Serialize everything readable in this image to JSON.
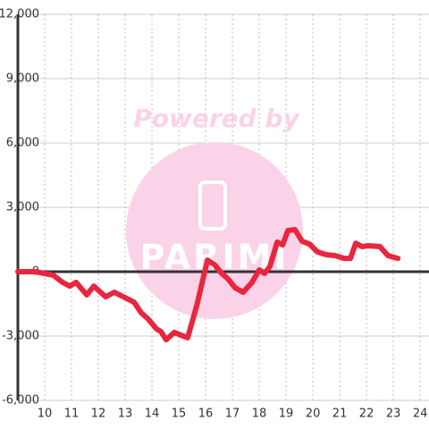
{
  "chart_data": {
    "type": "line",
    "watermark": "Powered by",
    "watermark_logo": "PARIMI",
    "x": [
      9.0,
      9.67,
      10.33,
      10.67,
      10.93,
      11.17,
      11.57,
      11.83,
      12.27,
      12.6,
      13.0,
      13.33,
      13.6,
      13.83,
      14.17,
      14.33,
      14.53,
      14.83,
      15.33,
      15.67,
      16.07,
      16.33,
      16.6,
      16.83,
      17.1,
      17.4,
      17.73,
      18.0,
      18.2,
      18.4,
      18.67,
      18.87,
      19.07,
      19.33,
      19.6,
      19.87,
      20.17,
      20.5,
      20.83,
      21.17,
      21.4,
      21.6,
      21.83,
      22.07,
      22.5,
      22.8,
      23.17
    ],
    "series": [
      {
        "color": "#e8263e",
        "values": [
          0,
          0,
          -170,
          -500,
          -670,
          -500,
          -1080,
          -670,
          -1170,
          -960,
          -1210,
          -1420,
          -1920,
          -2170,
          -2670,
          -2790,
          -3170,
          -2830,
          -3080,
          -1580,
          540,
          330,
          -80,
          -330,
          -750,
          -960,
          -500,
          80,
          -80,
          250,
          1380,
          1250,
          1920,
          1960,
          1420,
          1290,
          920,
          790,
          750,
          620,
          620,
          1330,
          1170,
          1210,
          1170,
          750,
          620
        ]
      }
    ],
    "xlim": [
      9,
      24.33
    ],
    "xticks": [
      10,
      11,
      12,
      13,
      14,
      15,
      16,
      17,
      18,
      19,
      20,
      21,
      22,
      23,
      24
    ],
    "ylim": [
      -6000,
      12000
    ],
    "yticks": [
      {
        "value": -6000,
        "label": "-6,000"
      },
      {
        "value": -3000,
        "label": "-3,000"
      },
      0,
      {
        "value": 3000,
        "label": "3,000"
      },
      {
        "value": 6000,
        "label": "6,000"
      },
      {
        "value": 9000,
        "label": "9,000"
      },
      {
        "value": 12000,
        "label": "12,000"
      }
    ],
    "grid": true
  }
}
